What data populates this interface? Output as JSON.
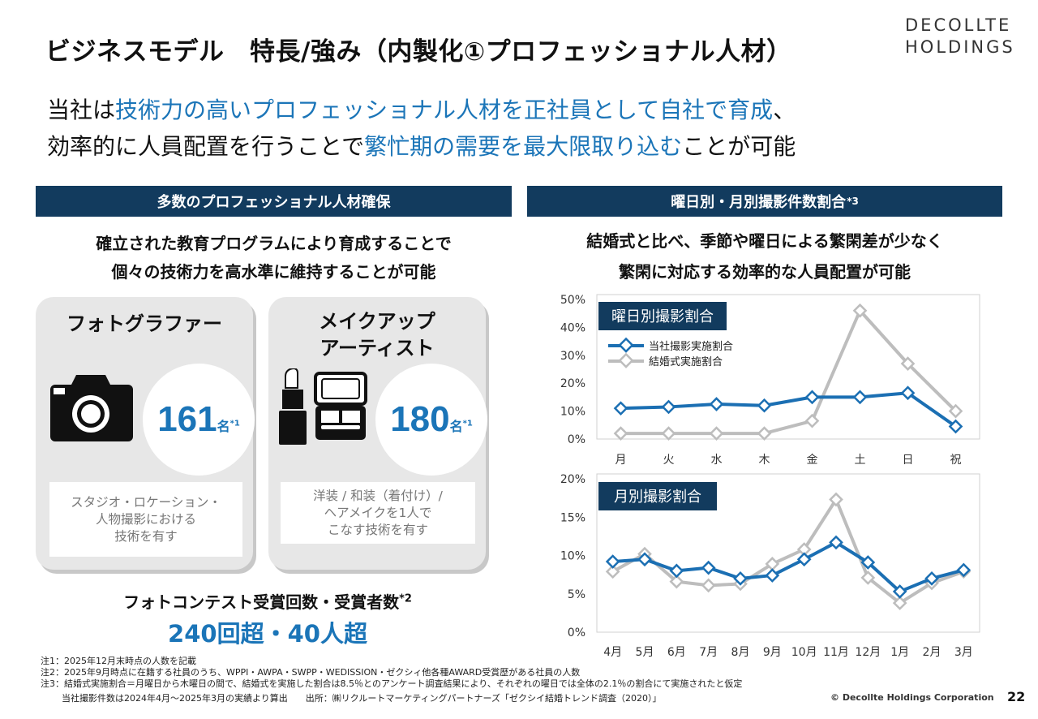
{
  "header": {
    "title": "ビジネスモデル　特長/強み（内製化①プロフェッショナル人材）",
    "logo_line1": "DECOLLTE",
    "logo_line2": "HOLDINGS"
  },
  "lead": {
    "line1_a": "当社は",
    "line1_b": "技術力の高いプロフェッショナル人材を正社員として自社で育成",
    "line1_c": "、",
    "line2_a": "効率的に人員配置を行うことで",
    "line2_b": "繁忙期の需要を最大限取り込む",
    "line2_c": "ことが可能"
  },
  "left": {
    "bar_title": "多数のプロフェッショナル人材確保",
    "sub_line1": "確立された教育プログラムにより育成することで",
    "sub_line2": "個々の技術力を高水準に維持することが可能",
    "card1": {
      "title": "フォトグラファー",
      "number": "161",
      "unit": "名",
      "mark": "*1",
      "desc_line1": "スタジオ・ロケーション・",
      "desc_line2": "人物撮影における",
      "desc_line3": "技術を有す"
    },
    "card2": {
      "title_line1": "メイクアップ",
      "title_line2": "アーティスト",
      "number": "180",
      "unit": "名",
      "mark": "*1",
      "desc_line1": "洋装 / 和装（着付け）/",
      "desc_line2": "ヘアメイクを1人で",
      "desc_line3": "こなす技術を有す"
    },
    "contest_title": "フォトコンテスト受賞回数・受賞者数",
    "contest_mark": "*2",
    "contest_value": "240回超・40人超"
  },
  "right": {
    "bar_title": "曜日別・月別撮影件数割合",
    "bar_mark": "*3",
    "sub_line1": "結婚式と比べ、季節や曜日による繁閑差が少なく",
    "sub_line2": "繁閑に対応する効率的な人員配置が可能"
  },
  "colors": {
    "navy": "#123b5e",
    "accent_blue": "#1b75b8",
    "series_company": "#1b6fb3",
    "series_wedding": "#bdbdbd"
  },
  "chart_data": [
    {
      "type": "line",
      "title": "曜日別撮影割合",
      "categories": [
        "月",
        "火",
        "水",
        "木",
        "金",
        "土",
        "日",
        "祝"
      ],
      "y_ticks": [
        "0%",
        "10%",
        "20%",
        "30%",
        "40%",
        "50%"
      ],
      "ylim": [
        0,
        50
      ],
      "legend_position": "top-left",
      "series": [
        {
          "name": "当社撮影実施割合",
          "values": [
            11,
            11.5,
            12.5,
            12,
            15,
            15,
            16.5,
            4.5
          ]
        },
        {
          "name": "結婚式実施割合",
          "values": [
            2,
            2,
            2,
            2,
            6.5,
            46,
            27,
            10
          ]
        }
      ]
    },
    {
      "type": "line",
      "title": "月別撮影割合",
      "categories": [
        "4月",
        "5月",
        "6月",
        "7月",
        "8月",
        "9月",
        "10月",
        "11月",
        "12月",
        "1月",
        "2月",
        "3月"
      ],
      "y_ticks": [
        "0%",
        "5%",
        "10%",
        "15%",
        "20%"
      ],
      "ylim": [
        0,
        20
      ],
      "series": [
        {
          "name": "当社撮影実施割合",
          "values": [
            9.2,
            9.5,
            8.0,
            8.4,
            7.0,
            7.4,
            9.5,
            11.7,
            9.1,
            5.3,
            7.0,
            8.1
          ]
        },
        {
          "name": "結婚式実施割合",
          "values": [
            7.9,
            10.2,
            6.6,
            6.1,
            6.3,
            8.9,
            10.8,
            17.3,
            7.1,
            3.8,
            6.4,
            7.9
          ]
        }
      ]
    }
  ],
  "notes": {
    "n1": "注1：2025年12月末時点の人数を記載",
    "n2": "注2：2025年9月時点に在籍する社員のうち、WPPI・AWPA・SWPP・WEDISSION・ゼクシィ他各種AWARD受賞歴がある社員の人数",
    "n3": "注3：結婚式実施割合＝月曜日から木曜日の間で、結婚式を実施した割合は8.5％とのアンケート調査結果により、それぞれの曜日では全体の2.1％の割合にて実施されたと仮定",
    "n4": "当社撮影件数は2024年4月～2025年3月の実績より算出　　出所：㈱リクルートマーケティングパートナーズ「ゼクシイ結婚トレンド調査（2020）」"
  },
  "footer": {
    "copyright": "© Decollte Holdings Corporation",
    "page": "22"
  }
}
